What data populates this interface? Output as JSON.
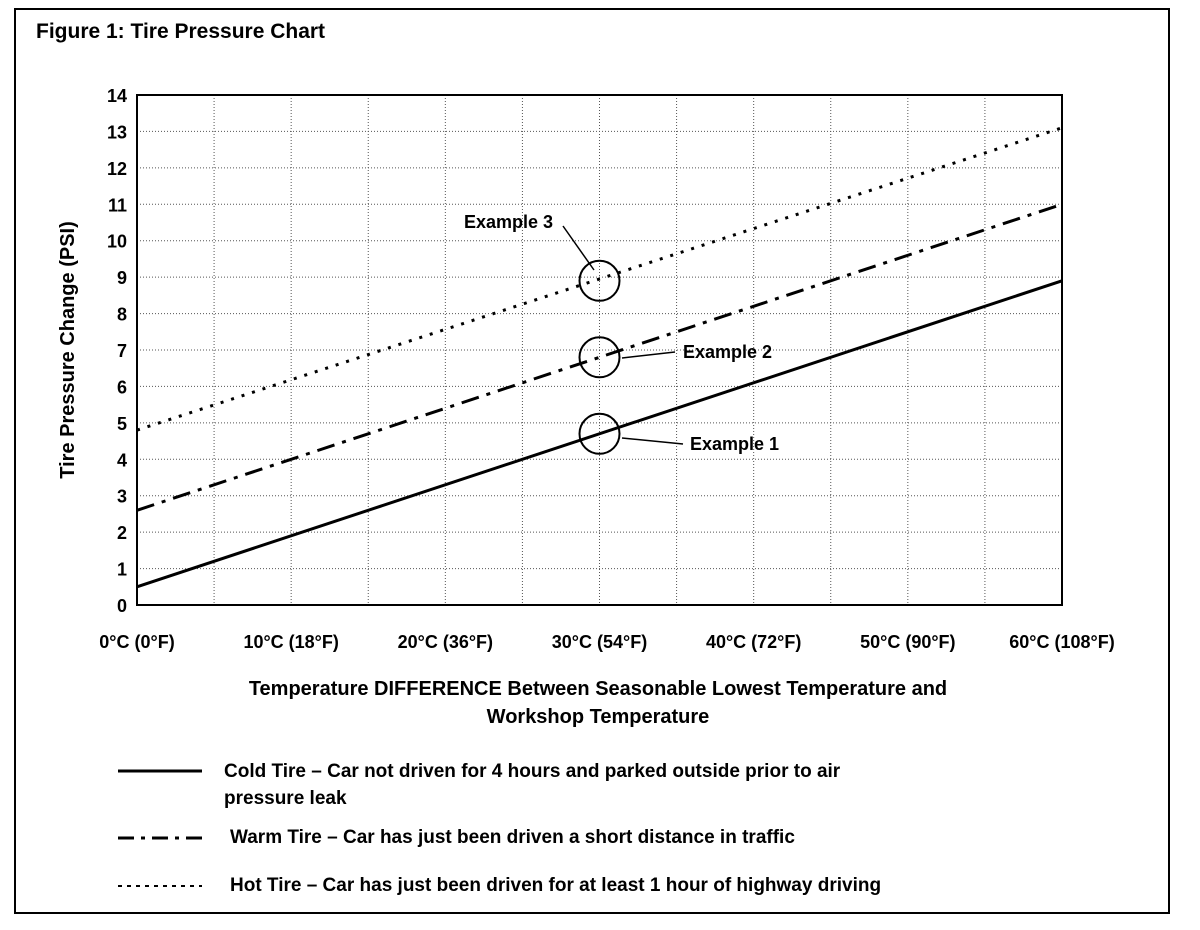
{
  "figure_title": "Figure 1: Tire Pressure Chart",
  "chart_data": {
    "type": "line",
    "title": "Figure 1: Tire Pressure Chart",
    "ylabel": "Tire Pressure Change (PSI)",
    "xlabel_lines": [
      "Temperature DIFFERENCE Between Seasonable Lowest Temperature and",
      "Workshop Temperature"
    ],
    "x_tick_labels": [
      "0°C (0°F)",
      "10°C (18°F)",
      "20°C (36°F)",
      "30°C (54°F)",
      "40°C (72°F)",
      "50°C (90°F)",
      "60°C (108°F)"
    ],
    "x_ticks": [
      0,
      10,
      20,
      30,
      40,
      50,
      60
    ],
    "xlim": [
      0,
      60
    ],
    "ylim": [
      0,
      14
    ],
    "y_ticks": [
      0,
      1,
      2,
      3,
      4,
      5,
      6,
      7,
      8,
      9,
      10,
      11,
      12,
      13,
      14
    ],
    "grid": true,
    "series": [
      {
        "name": "Cold Tire",
        "style": "solid",
        "x": [
          0,
          60
        ],
        "y": [
          0.5,
          8.9
        ]
      },
      {
        "name": "Warm Tire",
        "style": "dashdot",
        "x": [
          0,
          60
        ],
        "y": [
          2.6,
          11.0
        ]
      },
      {
        "name": "Hot Tire",
        "style": "dotted",
        "x": [
          0,
          60
        ],
        "y": [
          4.8,
          13.1
        ]
      }
    ],
    "annotations": [
      {
        "text": "Example 1",
        "x": 30,
        "y": 4.7
      },
      {
        "text": "Example 2",
        "x": 30,
        "y": 6.8
      },
      {
        "text": "Example 3",
        "x": 30,
        "y": 8.9
      }
    ]
  },
  "legend": [
    {
      "style": "solid",
      "lines": [
        "Cold Tire – Car not driven for 4 hours and parked outside prior to air",
        "pressure leak"
      ]
    },
    {
      "style": "dashdot",
      "lines": [
        "Warm Tire – Car has just been driven a short distance in traffic"
      ]
    },
    {
      "style": "dotted",
      "lines": [
        "Hot Tire – Car has just been driven for at least 1 hour of highway driving"
      ]
    }
  ]
}
